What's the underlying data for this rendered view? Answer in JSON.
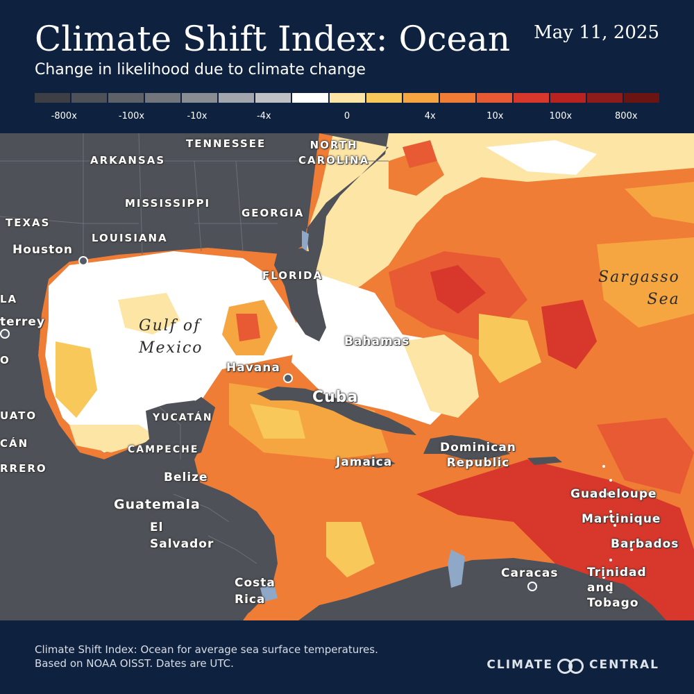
{
  "header": {
    "title": "Climate Shift Index: Ocean",
    "date": "May 11, 2025",
    "subtitle": "Change in likelihood due to climate change"
  },
  "legend": {
    "colors": [
      "#3d3f44",
      "#4e5157",
      "#5e6168",
      "#72757c",
      "#898c93",
      "#a3a6ac",
      "#bfc1c5",
      "#ffffff",
      "#fde5a5",
      "#f8c85a",
      "#f5a640",
      "#f07d35",
      "#e85a34",
      "#d8382b",
      "#b9231f",
      "#8e1c1a",
      "#6b1512"
    ],
    "labels": [
      {
        "text": "-800x",
        "pos": 0.047
      },
      {
        "text": "-100x",
        "pos": 0.155
      },
      {
        "text": "-10x",
        "pos": 0.26
      },
      {
        "text": "-4x",
        "pos": 0.367
      },
      {
        "text": "0",
        "pos": 0.5
      },
      {
        "text": "4x",
        "pos": 0.633
      },
      {
        "text": "10x",
        "pos": 0.737
      },
      {
        "text": "100x",
        "pos": 0.842
      },
      {
        "text": "800x",
        "pos": 0.947
      }
    ]
  },
  "map": {
    "labels": {
      "tennessee": "TENNESSEE",
      "north_carolina": "NORTH\nCAROLINA",
      "arkansas": "ARKANSAS",
      "mississippi": "MISSISSIPPI",
      "georgia": "GEORGIA",
      "texas": "TEXAS",
      "louisiana": "LOUISIANA",
      "houston": "Houston",
      "florida": "FLORIDA",
      "la_partial": "LA",
      "monterrey_partial": "terrey",
      "gulf_of_mexico": "Gulf of\nMexico",
      "bahamas": "Bahamas",
      "havana": "Havana",
      "cuba": "Cuba",
      "o_partial": "O",
      "guanajuato_partial": "UATO",
      "yucatan": "YUCATÁN",
      "michoacan_partial": "CÁN",
      "campeche": "CAMPECHE",
      "guerrero_partial": "RRERO",
      "belize": "Belize",
      "jamaica": "Jamaica",
      "dominican_republic": "Dominican\nRepublic",
      "guatemala": "Guatemala",
      "el_salvador": "El\nSalvador",
      "guadeloupe": "Guadeloupe",
      "martinique": "Martinique",
      "barbados": "Barbados",
      "costa_rica": "Costa\nRica",
      "caracas": "Caracas",
      "trinidad_and_tobago": "Trinidad\nand\nTobago",
      "sargasso_sea": "Sargasso\nSea"
    }
  },
  "footer": {
    "note_line1": "Climate Shift Index: Ocean for average sea surface temperatures.",
    "note_line2": "Based on NOAA OISST. Dates are UTC.",
    "brand_left": "CLIMATE",
    "brand_right": "CENTRAL"
  }
}
